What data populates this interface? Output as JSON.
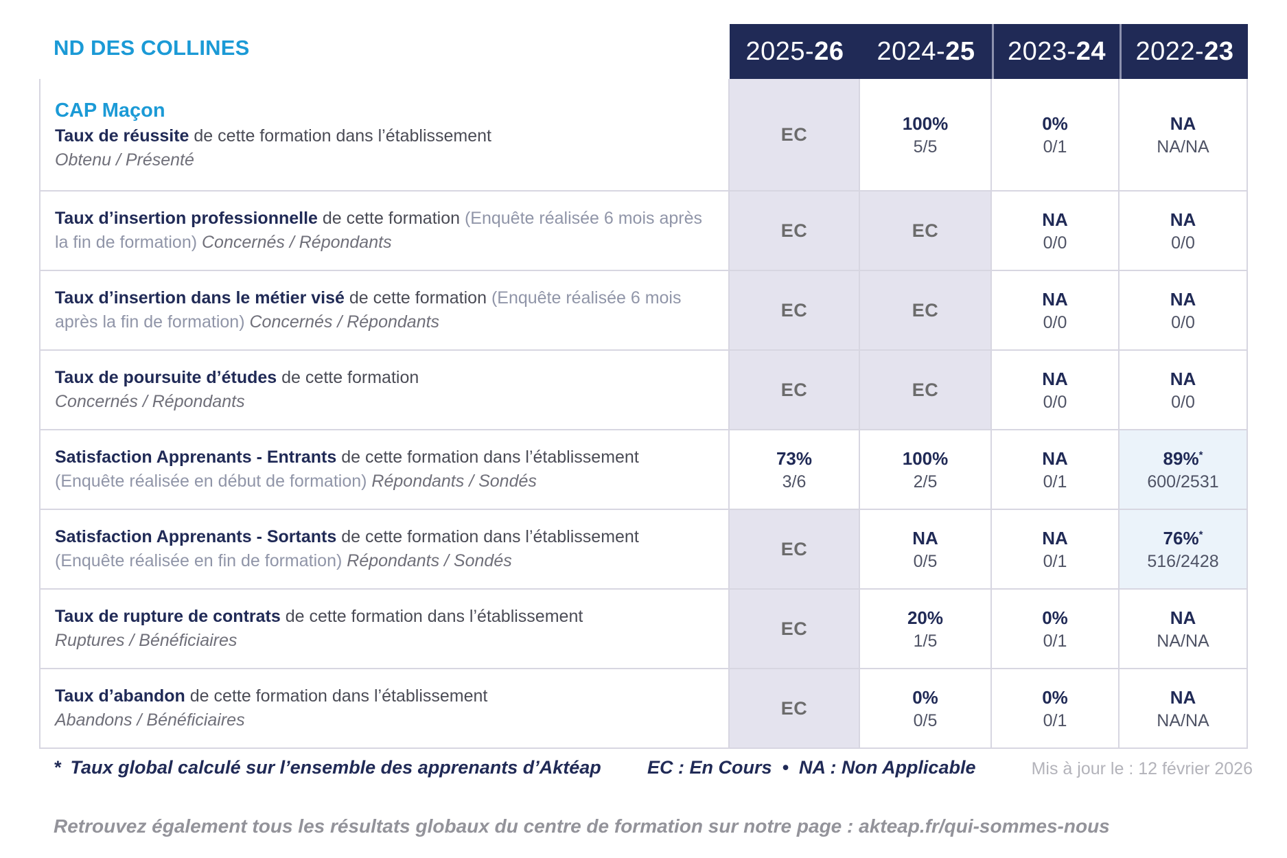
{
  "school": "ND DES COLLINES",
  "columns": [
    {
      "pre": "2025-",
      "bold": "26"
    },
    {
      "pre": "2024-",
      "bold": "25"
    },
    {
      "pre": "2023-",
      "bold": "24"
    },
    {
      "pre": "2022-",
      "bold": "23"
    }
  ],
  "rows": [
    {
      "program": "CAP Maçon",
      "title": "Taux de réussite",
      "desc": "de cette formation dans l’établissement",
      "paren": "",
      "sub": "Obtenu / Présenté",
      "values": [
        {
          "main": "EC"
        },
        {
          "main": "100%",
          "sub": "5/5"
        },
        {
          "main": "0%",
          "sub": "0/1"
        },
        {
          "main": "NA",
          "sub": "NA/NA"
        }
      ]
    },
    {
      "title": "Taux d’insertion professionnelle",
      "desc": "de cette formation",
      "paren": "(Enquête réalisée 6 mois après la fin de formation)",
      "sub": "Concernés / Répondants",
      "values": [
        {
          "main": "EC"
        },
        {
          "main": "EC"
        },
        {
          "main": "NA",
          "sub": "0/0"
        },
        {
          "main": "NA",
          "sub": "0/0"
        }
      ]
    },
    {
      "title": "Taux d’insertion dans le métier visé",
      "desc": "de cette formation",
      "paren": "(Enquête réalisée 6 mois après la fin de formation)",
      "sub": "Concernés / Répondants",
      "values": [
        {
          "main": "EC"
        },
        {
          "main": "EC"
        },
        {
          "main": "NA",
          "sub": "0/0"
        },
        {
          "main": "NA",
          "sub": "0/0"
        }
      ]
    },
    {
      "title": "Taux de poursuite d’études",
      "desc": "de cette formation",
      "paren": "",
      "sub": "Concernés / Répondants",
      "values": [
        {
          "main": "EC"
        },
        {
          "main": "EC"
        },
        {
          "main": "NA",
          "sub": "0/0"
        },
        {
          "main": "NA",
          "sub": "0/0"
        }
      ]
    },
    {
      "title": "Satisfaction Apprenants - Entrants",
      "desc": "de cette formation dans l’établissement",
      "paren": "(Enquête réalisée en début de formation)",
      "sub": "Répondants / Sondés",
      "values": [
        {
          "main": "73%",
          "sub": "3/6"
        },
        {
          "main": "100%",
          "sub": "2/5"
        },
        {
          "main": "NA",
          "sub": "0/1"
        },
        {
          "main": "89%",
          "star": "*",
          "sub": "600/2531"
        }
      ]
    },
    {
      "title": "Satisfaction Apprenants - Sortants",
      "desc": "de cette formation dans l’établissement",
      "paren": "(Enquête réalisée en fin de formation)",
      "sub": "Répondants / Sondés",
      "values": [
        {
          "main": "EC"
        },
        {
          "main": "NA",
          "sub": "0/5"
        },
        {
          "main": "NA",
          "sub": "0/1"
        },
        {
          "main": "76%",
          "star": "*",
          "sub": "516/2428"
        }
      ]
    },
    {
      "title": "Taux de rupture de contrats",
      "desc": "de cette formation dans l’établissement",
      "paren": "",
      "sub": "Ruptures / Bénéficiaires",
      "values": [
        {
          "main": "EC"
        },
        {
          "main": "20%",
          "sub": "1/5"
        },
        {
          "main": "0%",
          "sub": "0/1"
        },
        {
          "main": "NA",
          "sub": "NA/NA"
        }
      ]
    },
    {
      "title": "Taux d’abandon",
      "desc": "de cette formation dans l’établissement",
      "paren": "",
      "sub": "Abandons / Bénéficiaires",
      "values": [
        {
          "main": "EC"
        },
        {
          "main": "0%",
          "sub": "0/5"
        },
        {
          "main": "0%",
          "sub": "0/1"
        },
        {
          "main": "NA",
          "sub": "NA/NA"
        }
      ]
    }
  ],
  "footer": {
    "star": "*",
    "note": "Taux global calculé sur l’ensemble des apprenants d’Aktéap",
    "legend": "EC : En Cours  •  NA : Non Applicable",
    "updated": "Mis à jour le : 12 février 2026",
    "bottom": "Retrouvez également tous les résultats globaux du centre de formation sur notre page : akteap.fr/qui-sommes-nous"
  },
  "colors": {
    "navy": "#202a56",
    "accent_blue": "#1b9ad6",
    "ec_cell_bg": "#e4e3ee",
    "highlight_cell_bg": "#ebf3fa",
    "border": "#d7d6e1"
  }
}
